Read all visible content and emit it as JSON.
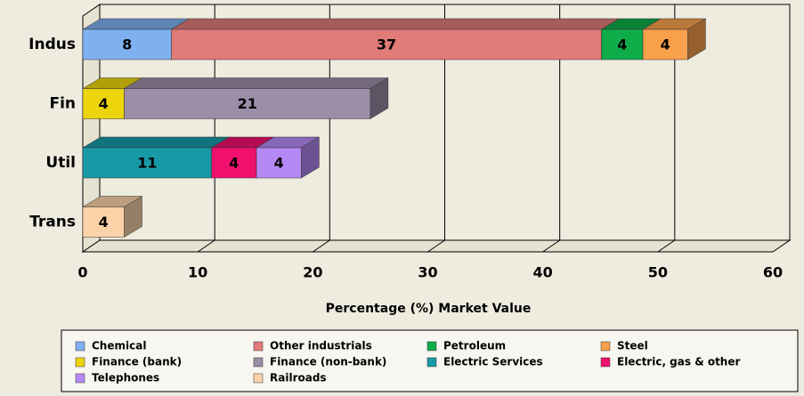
{
  "chart_data": {
    "type": "bar",
    "orientation": "horizontal",
    "stacked": true,
    "x_label": "Percentage (%) Market Value",
    "categories": [
      "Indus",
      "Fin",
      "Util",
      "Trans"
    ],
    "series": [
      {
        "name": "Chemical",
        "color": "#7fb0f0",
        "values": [
          7.7,
          null,
          null,
          null
        ],
        "value_labels": [
          "8",
          null,
          null,
          null
        ]
      },
      {
        "name": "Other industrials",
        "color": "#e07b78",
        "values": [
          37.4,
          null,
          null,
          null
        ],
        "value_labels": [
          "37",
          null,
          null,
          null
        ]
      },
      {
        "name": "Petroleum",
        "color": "#0fac4a",
        "values": [
          3.6,
          null,
          null,
          null
        ],
        "value_labels": [
          "4",
          null,
          null,
          null
        ]
      },
      {
        "name": "Steel",
        "color": "#f8a04c",
        "values": [
          3.9,
          null,
          null,
          null
        ],
        "value_labels": [
          "4",
          null,
          null,
          null
        ]
      },
      {
        "name": "Finance (bank)",
        "color": "#ecd50c",
        "values": [
          null,
          3.6,
          null,
          null
        ],
        "value_labels": [
          null,
          "4",
          null,
          null
        ]
      },
      {
        "name": "Finance (non-bank)",
        "color": "#9c8ea6",
        "values": [
          null,
          21.4,
          null,
          null
        ],
        "value_labels": [
          null,
          "21",
          null,
          null
        ]
      },
      {
        "name": "Electric Services",
        "color": "#1899a6",
        "values": [
          null,
          null,
          11.2,
          null
        ],
        "value_labels": [
          null,
          null,
          "11",
          null
        ]
      },
      {
        "name": "Electric, gas & other",
        "color": "#f0106e",
        "values": [
          null,
          null,
          3.9,
          null
        ],
        "value_labels": [
          null,
          null,
          "4",
          null
        ]
      },
      {
        "name": "Telephones",
        "color": "#b589f5",
        "values": [
          null,
          null,
          3.9,
          null
        ],
        "value_labels": [
          null,
          null,
          "4",
          null
        ]
      },
      {
        "name": "Railroads",
        "color": "#fcd3a8",
        "values": [
          null,
          null,
          null,
          3.6
        ],
        "value_labels": [
          null,
          null,
          null,
          "4"
        ]
      }
    ],
    "xlim": [
      0,
      60
    ],
    "xticks": [
      0,
      10,
      20,
      30,
      40,
      50,
      60
    ],
    "grid": true,
    "legend": "bottom"
  }
}
